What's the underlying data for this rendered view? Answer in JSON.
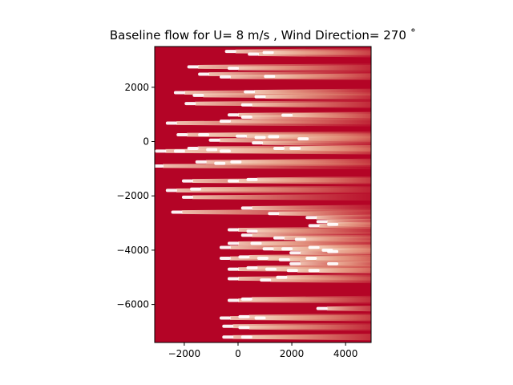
{
  "chart_data": {
    "type": "heatmap",
    "title": "Baseline flow for U= 8 m/s  ,  Wind Direction= 270  ˚",
    "xlabel": "",
    "ylabel": "",
    "xlim": [
      -3100,
      4950
    ],
    "ylim": [
      -7400,
      3500
    ],
    "xticks": [
      -2000,
      0,
      2000,
      4000
    ],
    "xtick_labels": [
      "−2000",
      "0",
      "2000",
      "4000"
    ],
    "yticks": [
      2000,
      0,
      -2000,
      -4000,
      -6000
    ],
    "ytick_labels": [
      "2000",
      "0",
      "−2000",
      "−4000",
      "−6000"
    ],
    "colormap": "coolwarm",
    "background_color": "#b40426",
    "wake_color": "#f2cbb7",
    "rotor_color": "#ffffff",
    "grid": false,
    "wind_direction_deg": 270,
    "wind_speed_ms": 8,
    "turbines": [
      {
        "x": -100,
        "y": 3320
      },
      {
        "x": 750,
        "y": 3220
      },
      {
        "x": 1300,
        "y": 3280
      },
      {
        "x": -1500,
        "y": 2750
      },
      {
        "x": 0,
        "y": 2700
      },
      {
        "x": -1100,
        "y": 2480
      },
      {
        "x": -300,
        "y": 2380
      },
      {
        "x": 1350,
        "y": 2400
      },
      {
        "x": -2000,
        "y": 1800
      },
      {
        "x": -1300,
        "y": 1700
      },
      {
        "x": 600,
        "y": 1830
      },
      {
        "x": 1000,
        "y": 1650
      },
      {
        "x": -1600,
        "y": 1400
      },
      {
        "x": 500,
        "y": 1350
      },
      {
        "x": 0,
        "y": 980
      },
      {
        "x": 500,
        "y": 900
      },
      {
        "x": 2000,
        "y": 970
      },
      {
        "x": -2300,
        "y": 680
      },
      {
        "x": -300,
        "y": 750
      },
      {
        "x": -1900,
        "y": 250
      },
      {
        "x": -1100,
        "y": 250
      },
      {
        "x": 300,
        "y": 200
      },
      {
        "x": 1000,
        "y": 150
      },
      {
        "x": 1500,
        "y": 180
      },
      {
        "x": 2600,
        "y": 100
      },
      {
        "x": -700,
        "y": 50
      },
      {
        "x": 900,
        "y": -50
      },
      {
        "x": -2700,
        "y": -350
      },
      {
        "x": -2000,
        "y": -350
      },
      {
        "x": -1500,
        "y": -250
      },
      {
        "x": -800,
        "y": -300
      },
      {
        "x": -300,
        "y": -350
      },
      {
        "x": 1700,
        "y": -250
      },
      {
        "x": 2300,
        "y": -250
      },
      {
        "x": -1200,
        "y": -750
      },
      {
        "x": -500,
        "y": -800
      },
      {
        "x": 100,
        "y": -750
      },
      {
        "x": -2800,
        "y": -900
      },
      {
        "x": -1700,
        "y": -1450
      },
      {
        "x": 0,
        "y": -1450
      },
      {
        "x": 700,
        "y": -1400
      },
      {
        "x": -2300,
        "y": -1800
      },
      {
        "x": -1400,
        "y": -1750
      },
      {
        "x": -1700,
        "y": -2050
      },
      {
        "x": -2100,
        "y": -2600
      },
      {
        "x": 500,
        "y": -2450
      },
      {
        "x": 1500,
        "y": -2650
      },
      {
        "x": 2900,
        "y": -2800
      },
      {
        "x": 3300,
        "y": -2950
      },
      {
        "x": 3700,
        "y": -3050
      },
      {
        "x": 3000,
        "y": -3100
      },
      {
        "x": 0,
        "y": -3250
      },
      {
        "x": 700,
        "y": -3300
      },
      {
        "x": 500,
        "y": -3450
      },
      {
        "x": 1700,
        "y": -3550
      },
      {
        "x": 2500,
        "y": -3600
      },
      {
        "x": 0,
        "y": -3750
      },
      {
        "x": 850,
        "y": -3750
      },
      {
        "x": -300,
        "y": -3900
      },
      {
        "x": 1300,
        "y": -3950
      },
      {
        "x": 2000,
        "y": -3950
      },
      {
        "x": 3000,
        "y": -3900
      },
      {
        "x": 3500,
        "y": -4000
      },
      {
        "x": 3700,
        "y": -4050
      },
      {
        "x": 2300,
        "y": -4100
      },
      {
        "x": -300,
        "y": -4300
      },
      {
        "x": 400,
        "y": -4250
      },
      {
        "x": 1100,
        "y": -4300
      },
      {
        "x": 1900,
        "y": -4350
      },
      {
        "x": 2900,
        "y": -4300
      },
      {
        "x": 3700,
        "y": -4500
      },
      {
        "x": 2300,
        "y": -4500
      },
      {
        "x": 0,
        "y": -4700
      },
      {
        "x": 700,
        "y": -4650
      },
      {
        "x": 1400,
        "y": -4700
      },
      {
        "x": 2200,
        "y": -4750
      },
      {
        "x": 3000,
        "y": -4750
      },
      {
        "x": 0,
        "y": -5050
      },
      {
        "x": 1200,
        "y": -5100
      },
      {
        "x": 1800,
        "y": -5000
      },
      {
        "x": 0,
        "y": -5850
      },
      {
        "x": 500,
        "y": -5800
      },
      {
        "x": 3300,
        "y": -6150
      },
      {
        "x": -300,
        "y": -6500
      },
      {
        "x": 400,
        "y": -6450
      },
      {
        "x": 1000,
        "y": -6500
      },
      {
        "x": -200,
        "y": -6800
      },
      {
        "x": 400,
        "y": -6850
      },
      {
        "x": -200,
        "y": -7200
      },
      {
        "x": 500,
        "y": -7200
      }
    ]
  }
}
